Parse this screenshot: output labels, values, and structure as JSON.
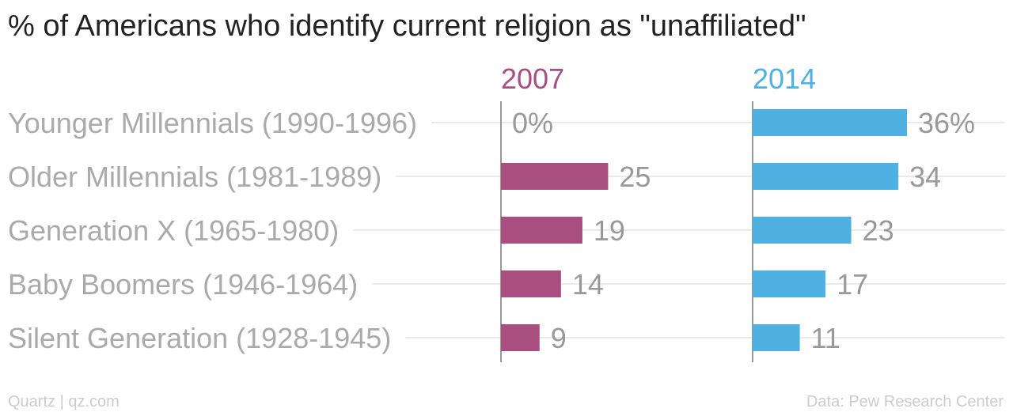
{
  "chart_data": {
    "type": "bar",
    "title": "% of Americans who identify current religion as \"unaffiliated\"",
    "categories": [
      "Younger Millennials (1990-1996)",
      "Older Millennials (1981-1989)",
      "Generation X (1965-1980)",
      "Baby Boomers (1946-1964)",
      "Silent Generation (1928-1945)"
    ],
    "series": [
      {
        "name": "2007",
        "values": [
          0,
          25,
          19,
          14,
          9
        ],
        "color": "#a94f80",
        "labels": [
          "0%",
          "25",
          "19",
          "14",
          "9"
        ]
      },
      {
        "name": "2014",
        "values": [
          36,
          34,
          23,
          17,
          11
        ],
        "color": "#4fb0e2",
        "labels": [
          "36%",
          "34",
          "23",
          "17",
          "11"
        ]
      }
    ],
    "xlim": [
      0,
      36
    ],
    "grid": true,
    "legend": "top"
  },
  "footer": {
    "source_left": "Quartz | qz.com",
    "source_right": "Data: Pew Research Center"
  }
}
